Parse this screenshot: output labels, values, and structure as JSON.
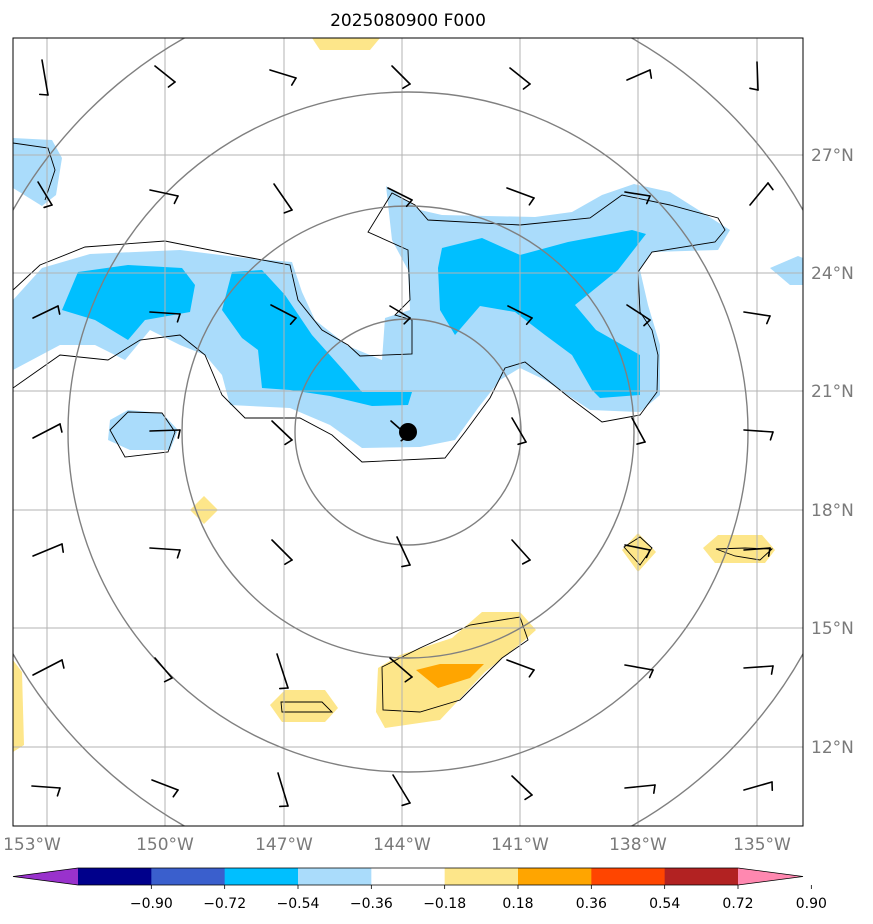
{
  "title": "2025080900 F000",
  "map": {
    "lon_labels": [
      "153°W",
      "150°W",
      "147°W",
      "144°W",
      "141°W",
      "138°W",
      "135°W"
    ],
    "lat_labels": [
      "27°N",
      "24°N",
      "21°N",
      "18°N",
      "15°N",
      "12°N"
    ],
    "lon_range": [
      -154,
      -134
    ],
    "lat_range": [
      10,
      29.8
    ],
    "storm_center": {
      "lon": -143.9,
      "lat": 19.6
    },
    "grid": true
  },
  "colorbar": {
    "ticks": [
      "−0.90",
      "−0.72",
      "−0.54",
      "−0.36",
      "−0.18",
      "0.18",
      "0.36",
      "0.54",
      "0.72",
      "0.90"
    ],
    "colors": [
      "#9932cc",
      "#00008b",
      "#3a5fcd",
      "#00bfff",
      "#aadcfb",
      "#ffffff",
      "#fde68a",
      "#ffa500",
      "#ff4500",
      "#b22222",
      "#ff88b0"
    ],
    "extend": "both"
  }
}
